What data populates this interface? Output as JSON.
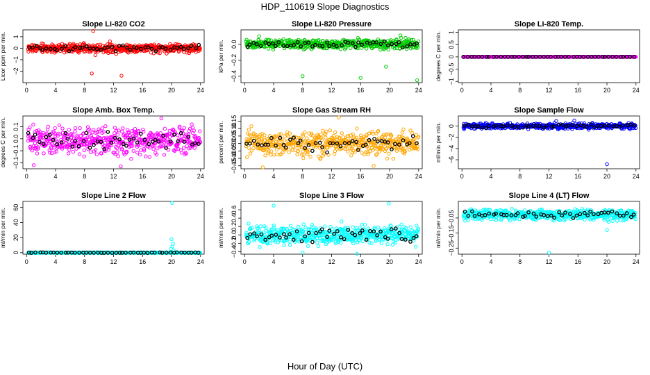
{
  "figure": {
    "title": "HDP_110619  Slope Diagnostics",
    "xlabel": "Hour of Day (UTC)"
  },
  "chart_data": [
    {
      "type": "scatter",
      "title": "Slope Li-820 CO2",
      "ylabel": "Licor ppm per min.",
      "xlim": [
        -0.5,
        24.5
      ],
      "ylim": [
        -3.0,
        1.6
      ],
      "xticks": [
        0,
        4,
        8,
        12,
        16,
        20,
        24
      ],
      "yticks": [
        -2,
        -1,
        0,
        1
      ],
      "color": "#ff0000",
      "base": 0.0,
      "spread": 0.28,
      "outliers": [
        [
          9.2,
          1.5
        ],
        [
          9.0,
          -2.2
        ],
        [
          9.5,
          -0.6
        ],
        [
          13.1,
          -2.4
        ],
        [
          11.5,
          0.6
        ]
      ]
    },
    {
      "type": "scatter",
      "title": "Slope Li-820 Pressure",
      "ylabel": "kPa per min.",
      "xlim": [
        -0.5,
        24.5
      ],
      "ylim": [
        -0.48,
        0.18
      ],
      "xticks": [
        0,
        4,
        8,
        12,
        16,
        20,
        24
      ],
      "yticks": [
        -0.4,
        -0.2,
        0.0
      ],
      "color": "#00cc00",
      "base": 0.0,
      "spread": 0.045,
      "outliers": [
        [
          8.0,
          -0.4
        ],
        [
          16.0,
          -0.42
        ],
        [
          19.5,
          -0.28
        ],
        [
          23.8,
          -0.45
        ],
        [
          2.0,
          0.1
        ],
        [
          21.5,
          0.11
        ],
        [
          22.2,
          0.08
        ]
      ]
    },
    {
      "type": "scatter",
      "title": "Slope Li-820 Temp.",
      "ylabel": "degrees C per min.",
      "xlim": [
        -0.5,
        24.5
      ],
      "ylim": [
        -1.05,
        1.1
      ],
      "xticks": [
        0,
        4,
        8,
        12,
        16,
        20,
        24
      ],
      "yticks": [
        -1.0,
        -0.5,
        0.0,
        0.5,
        1.0
      ],
      "color": "#ff00ff",
      "base": 0.0,
      "spread": 0.0,
      "outliers": []
    },
    {
      "type": "scatter",
      "title": "Slope Amb. Box Temp.",
      "ylabel": "degrees C per min.",
      "xlim": [
        -0.5,
        24.5
      ],
      "ylim": [
        -0.125,
        0.095
      ],
      "xticks": [
        0,
        4,
        8,
        12,
        16,
        20,
        24
      ],
      "yticks": [
        -0.1,
        -0.05,
        0.0,
        0.05
      ],
      "color": "#ff00ff",
      "base": -0.01,
      "spread": 0.04,
      "outliers": [
        [
          18.6,
          0.085
        ],
        [
          1.0,
          -0.11
        ],
        [
          13.0,
          -0.115
        ]
      ]
    },
    {
      "type": "scatter",
      "title": "Slope Gas Stream RH",
      "ylabel": "percent per min.",
      "xlim": [
        -0.5,
        24.5
      ],
      "ylim": [
        -0.17,
        0.185
      ],
      "xticks": [
        0,
        4,
        8,
        12,
        16,
        20,
        24
      ],
      "yticks": [
        -0.15,
        -0.1,
        -0.05,
        0.0,
        0.05,
        0.1,
        0.15
      ],
      "color": "#ffa500",
      "base": 0.0,
      "spread": 0.06,
      "outliers": [
        [
          13.0,
          0.175
        ],
        [
          2.5,
          -0.16
        ],
        [
          17.8,
          -0.15
        ]
      ]
    },
    {
      "type": "scatter",
      "title": "Slope Sample Flow",
      "ylabel": "ml/min per min.",
      "xlim": [
        -0.5,
        24.5
      ],
      "ylim": [
        -7.6,
        1.8
      ],
      "xticks": [
        0,
        4,
        8,
        12,
        16,
        20,
        24
      ],
      "yticks": [
        -6,
        -4,
        -2,
        0
      ],
      "color": "#0000ff",
      "base": 0.0,
      "spread": 0.35,
      "outliers": [
        [
          20.0,
          -6.8
        ],
        [
          13.0,
          0.9
        ],
        [
          15.5,
          1.0
        ]
      ]
    },
    {
      "type": "scatter",
      "title": "Slope Line 2 Flow",
      "ylabel": "ml/min per min.",
      "xlim": [
        -0.5,
        24.5
      ],
      "ylim": [
        -2.0,
        68.0
      ],
      "xticks": [
        0,
        4,
        8,
        12,
        16,
        20,
        24
      ],
      "yticks": [
        0,
        20,
        40,
        60
      ],
      "color": "#00ffff",
      "base": 0.0,
      "spread": 0.3,
      "outliers": [
        [
          20.1,
          66.0
        ],
        [
          20.0,
          18.0
        ],
        [
          20.2,
          12.0
        ],
        [
          20.1,
          8.0
        ],
        [
          19.9,
          5.0
        ],
        [
          20.3,
          3.0
        ]
      ]
    },
    {
      "type": "scatter",
      "title": "Slope Line 3 Flow",
      "ylabel": "ml/min per min.",
      "xlim": [
        -0.5,
        24.5
      ],
      "ylim": [
        -0.46,
        0.8
      ],
      "xticks": [
        0,
        4,
        8,
        12,
        16,
        20,
        24
      ],
      "yticks": [
        -0.4,
        -0.2,
        0.0,
        0.2,
        0.4,
        0.6
      ],
      "color": "#00ffff",
      "base": 0.0,
      "spread": 0.16,
      "outliers": [
        [
          4.0,
          0.7
        ],
        [
          19.9,
          0.75
        ],
        [
          15.5,
          -0.45
        ],
        [
          8.0,
          -0.42
        ]
      ]
    },
    {
      "type": "scatter",
      "title": "Slope Line 4 (LT) Flow",
      "ylabel": "ml/min per min.",
      "xlim": [
        -0.5,
        24.5
      ],
      "ylim": [
        -0.29,
        0.06
      ],
      "xticks": [
        0,
        4,
        8,
        12,
        16,
        20,
        24
      ],
      "yticks": [
        -0.25,
        -0.15,
        -0.05
      ],
      "color": "#00ffff",
      "base": -0.03,
      "spread": 0.025,
      "outliers": [
        [
          12.0,
          -0.28
        ],
        [
          20.0,
          -0.13
        ]
      ]
    }
  ]
}
